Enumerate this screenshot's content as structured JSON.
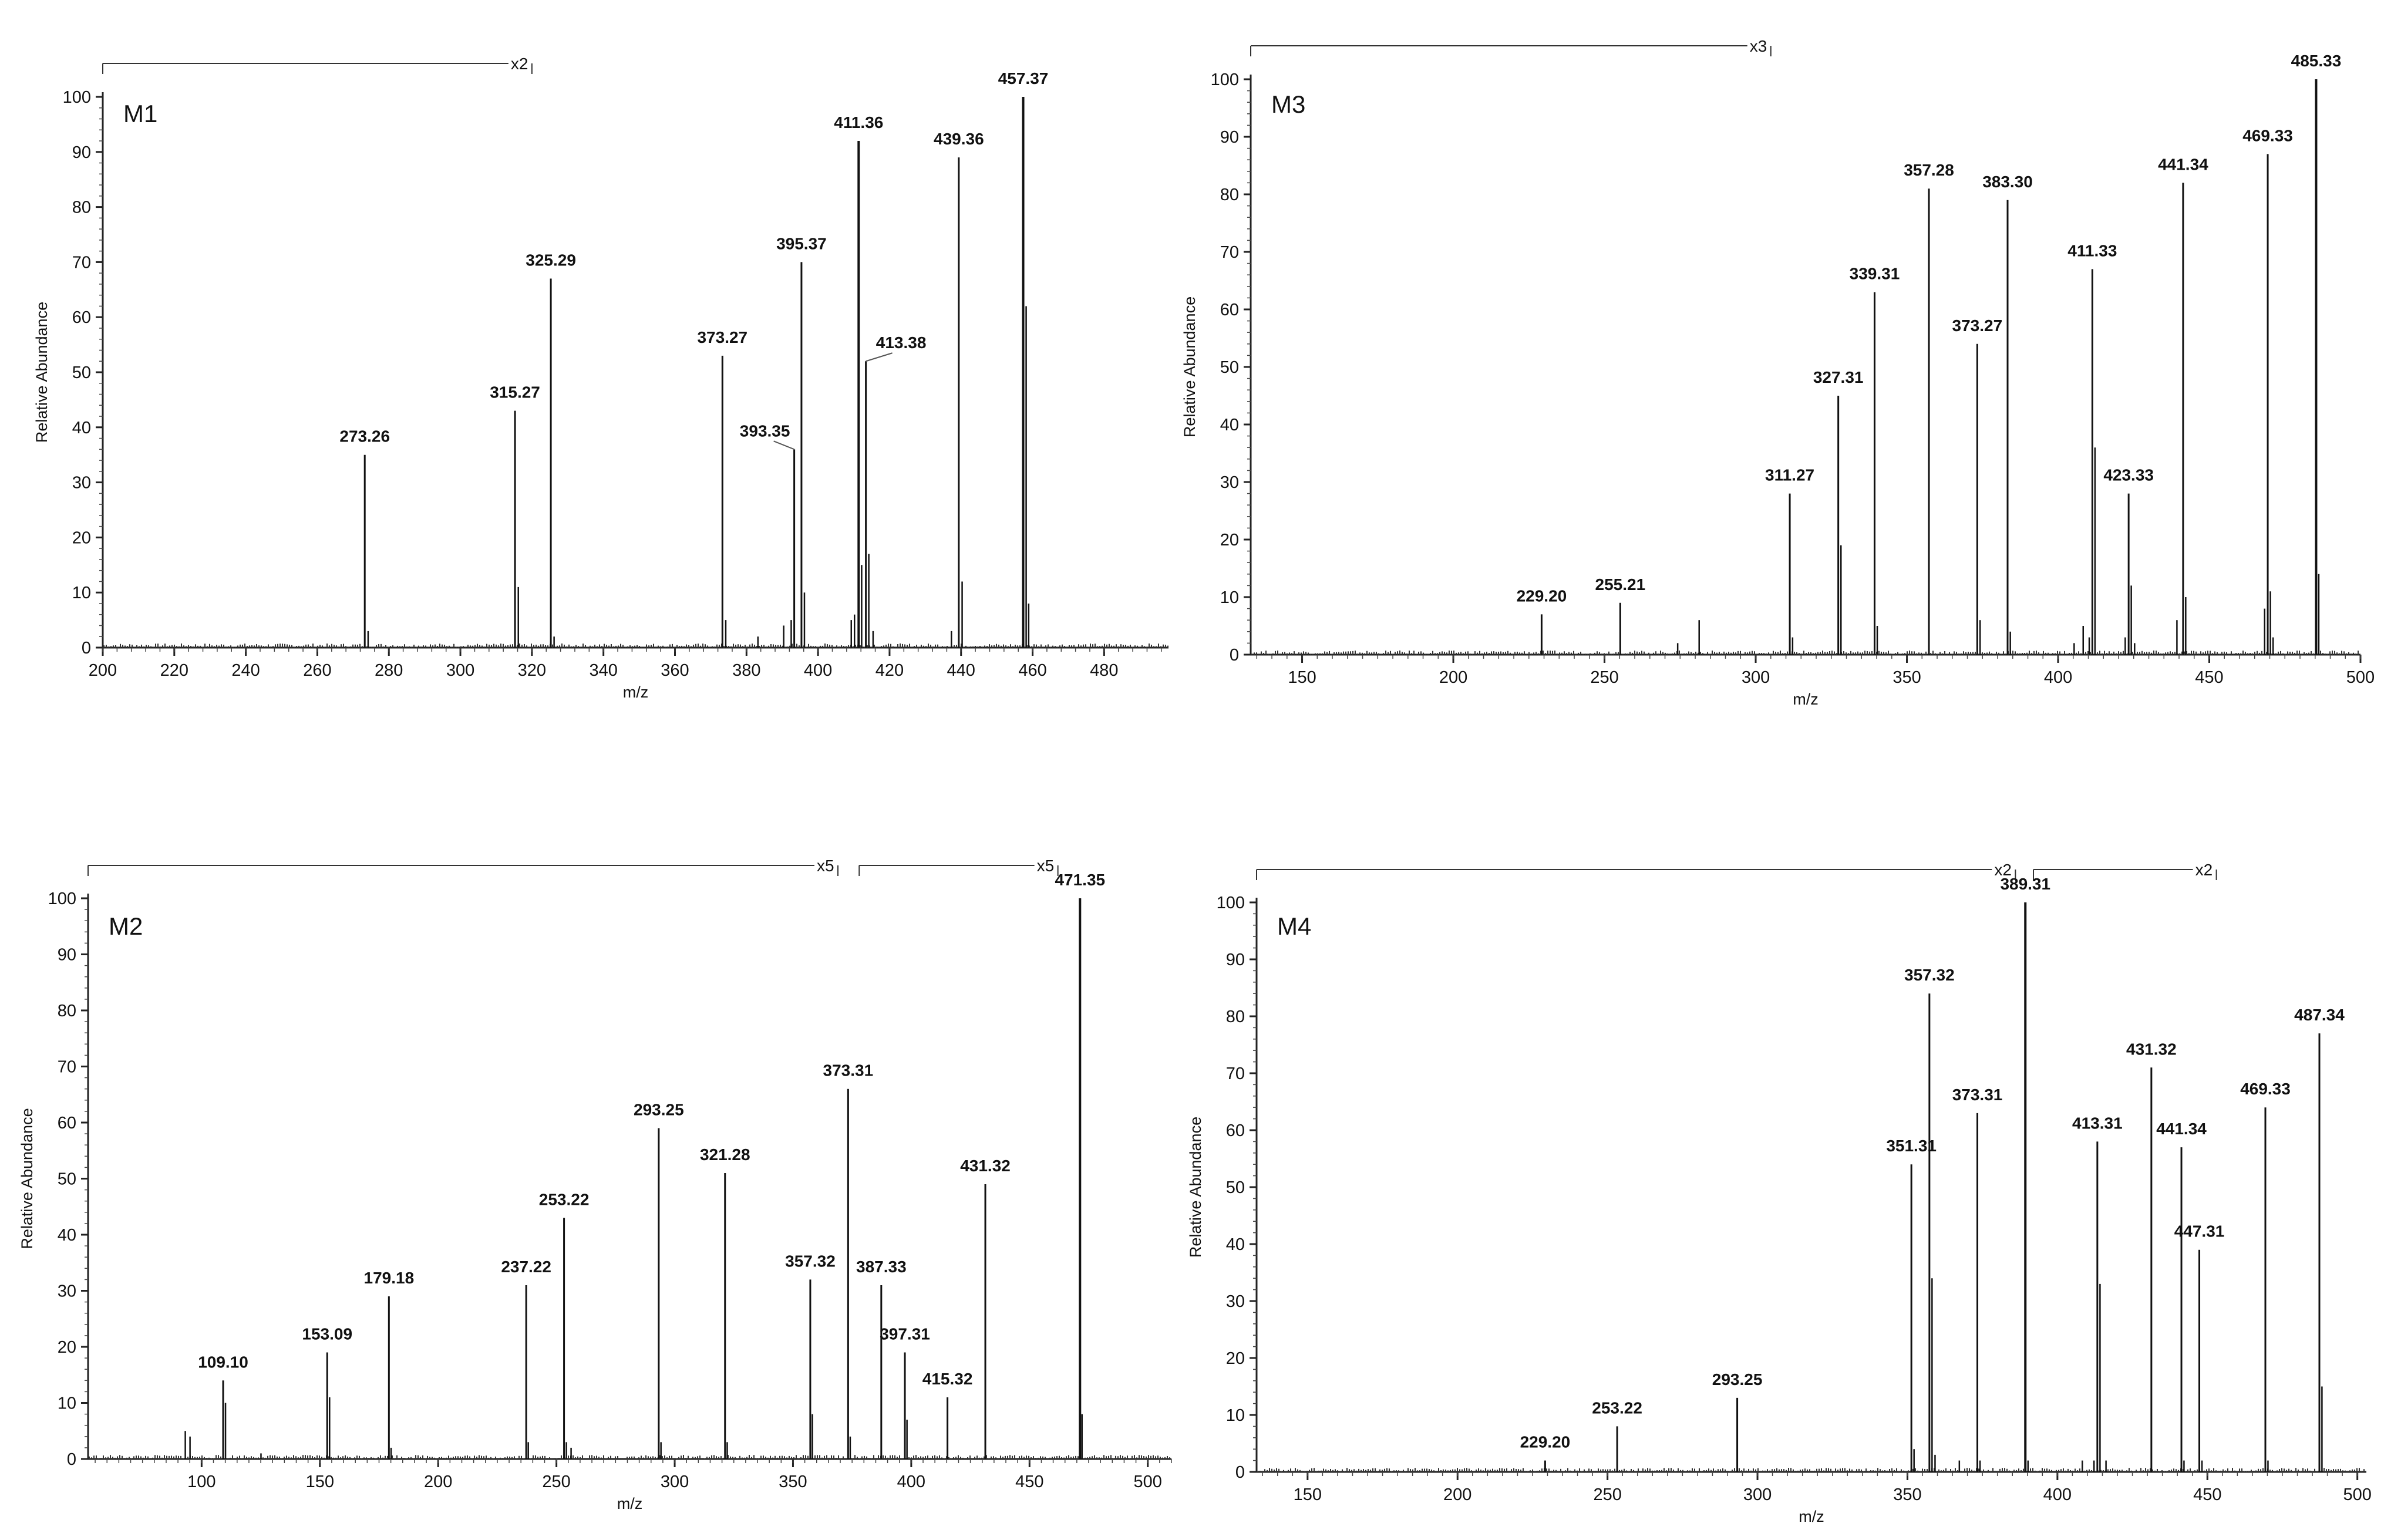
{
  "chart_data": [
    {
      "type": "bar",
      "panel_label": "M1",
      "xlabel": "m/z",
      "ylabel": "Relative Abundance",
      "xlim": [
        200,
        498
      ],
      "ylim": [
        0,
        100
      ],
      "xticks": [
        200,
        220,
        240,
        260,
        280,
        300,
        320,
        340,
        360,
        380,
        400,
        420,
        440,
        460,
        480
      ],
      "yticks": [
        0,
        10,
        20,
        30,
        40,
        50,
        60,
        70,
        80,
        90,
        100
      ],
      "magnifications": [
        {
          "label": "x2",
          "from": 200,
          "to": 320
        }
      ],
      "peaks": [
        {
          "mz": 273.26,
          "abundance": 35,
          "label": "273.26"
        },
        {
          "mz": 315.27,
          "abundance": 43,
          "label": "315.27"
        },
        {
          "mz": 325.29,
          "abundance": 67,
          "label": "325.29"
        },
        {
          "mz": 373.27,
          "abundance": 53,
          "label": "373.27"
        },
        {
          "mz": 393.35,
          "abundance": 36,
          "label": "393.35"
        },
        {
          "mz": 395.37,
          "abundance": 70,
          "label": "395.37"
        },
        {
          "mz": 411.36,
          "abundance": 92,
          "label": "411.36"
        },
        {
          "mz": 413.38,
          "abundance": 52,
          "label": "413.38"
        },
        {
          "mz": 439.36,
          "abundance": 89,
          "label": "439.36"
        },
        {
          "mz": 457.37,
          "abundance": 100,
          "label": "457.37"
        },
        {
          "mz": 274.2,
          "abundance": 3
        },
        {
          "mz": 316.2,
          "abundance": 11
        },
        {
          "mz": 326.2,
          "abundance": 2
        },
        {
          "mz": 374.2,
          "abundance": 5
        },
        {
          "mz": 383.2,
          "abundance": 2
        },
        {
          "mz": 390.4,
          "abundance": 4
        },
        {
          "mz": 392.5,
          "abundance": 5
        },
        {
          "mz": 396.2,
          "abundance": 10
        },
        {
          "mz": 409.3,
          "abundance": 5
        },
        {
          "mz": 410.2,
          "abundance": 6
        },
        {
          "mz": 412.2,
          "abundance": 15
        },
        {
          "mz": 414.2,
          "abundance": 17
        },
        {
          "mz": 415.4,
          "abundance": 3
        },
        {
          "mz": 437.3,
          "abundance": 3
        },
        {
          "mz": 440.3,
          "abundance": 12
        },
        {
          "mz": 458.2,
          "abundance": 62
        },
        {
          "mz": 458.9,
          "abundance": 8
        }
      ]
    },
    {
      "type": "bar",
      "panel_label": "M3",
      "xlabel": "m/z",
      "ylabel": "Relative Abundance",
      "xlim": [
        133,
        500
      ],
      "ylim": [
        0,
        100
      ],
      "xticks": [
        150,
        200,
        250,
        300,
        350,
        400,
        450,
        500
      ],
      "yticks": [
        0,
        10,
        20,
        30,
        40,
        50,
        60,
        70,
        80,
        90,
        100
      ],
      "magnifications": [
        {
          "label": "x3",
          "from": 133,
          "to": 305
        }
      ],
      "peaks": [
        {
          "mz": 229.2,
          "abundance": 7,
          "label": "229.20"
        },
        {
          "mz": 255.21,
          "abundance": 9,
          "label": "255.21"
        },
        {
          "mz": 311.27,
          "abundance": 28,
          "label": "311.27"
        },
        {
          "mz": 327.31,
          "abundance": 45,
          "label": "327.31"
        },
        {
          "mz": 339.31,
          "abundance": 63,
          "label": "339.31"
        },
        {
          "mz": 357.28,
          "abundance": 81,
          "label": "357.28"
        },
        {
          "mz": 373.27,
          "abundance": 54,
          "label": "373.27"
        },
        {
          "mz": 383.3,
          "abundance": 79,
          "label": "383.30"
        },
        {
          "mz": 411.33,
          "abundance": 67,
          "label": "411.33"
        },
        {
          "mz": 423.33,
          "abundance": 28,
          "label": "423.33"
        },
        {
          "mz": 441.34,
          "abundance": 82,
          "label": "441.34"
        },
        {
          "mz": 469.33,
          "abundance": 87,
          "label": "469.33"
        },
        {
          "mz": 485.33,
          "abundance": 100,
          "label": "485.33"
        },
        {
          "mz": 274.2,
          "abundance": 2
        },
        {
          "mz": 281.3,
          "abundance": 6
        },
        {
          "mz": 312.2,
          "abundance": 3
        },
        {
          "mz": 328.2,
          "abundance": 19
        },
        {
          "mz": 340.2,
          "abundance": 5
        },
        {
          "mz": 374.2,
          "abundance": 6
        },
        {
          "mz": 384.2,
          "abundance": 4
        },
        {
          "mz": 405.3,
          "abundance": 2
        },
        {
          "mz": 408.3,
          "abundance": 5
        },
        {
          "mz": 410.3,
          "abundance": 3
        },
        {
          "mz": 412.2,
          "abundance": 36
        },
        {
          "mz": 422.2,
          "abundance": 3
        },
        {
          "mz": 424.2,
          "abundance": 12
        },
        {
          "mz": 425.3,
          "abundance": 2
        },
        {
          "mz": 439.3,
          "abundance": 6
        },
        {
          "mz": 442.2,
          "abundance": 10
        },
        {
          "mz": 468.3,
          "abundance": 8
        },
        {
          "mz": 470.2,
          "abundance": 11
        },
        {
          "mz": 471.1,
          "abundance": 3
        },
        {
          "mz": 486.2,
          "abundance": 14
        }
      ]
    },
    {
      "type": "bar",
      "panel_label": "M2",
      "xlabel": "m/z",
      "ylabel": "Relative Abundance",
      "xlim": [
        52,
        510
      ],
      "ylim": [
        0,
        100
      ],
      "xticks": [
        100,
        150,
        200,
        250,
        300,
        350,
        400,
        450,
        500
      ],
      "yticks": [
        0,
        10,
        20,
        30,
        40,
        50,
        60,
        70,
        80,
        90,
        100
      ],
      "magnifications": [
        {
          "label": "x5",
          "from": 52,
          "to": 369
        },
        {
          "label": "x5",
          "from": 378,
          "to": 462
        }
      ],
      "peaks": [
        {
          "mz": 109.1,
          "abundance": 14,
          "label": "109.10"
        },
        {
          "mz": 153.09,
          "abundance": 19,
          "label": "153.09"
        },
        {
          "mz": 179.18,
          "abundance": 29,
          "label": "179.18"
        },
        {
          "mz": 237.22,
          "abundance": 31,
          "label": "237.22"
        },
        {
          "mz": 253.22,
          "abundance": 43,
          "label": "253.22"
        },
        {
          "mz": 293.25,
          "abundance": 59,
          "label": "293.25"
        },
        {
          "mz": 321.28,
          "abundance": 51,
          "label": "321.28"
        },
        {
          "mz": 357.32,
          "abundance": 32,
          "label": "357.32"
        },
        {
          "mz": 373.31,
          "abundance": 66,
          "label": "373.31"
        },
        {
          "mz": 387.33,
          "abundance": 31,
          "label": "387.33"
        },
        {
          "mz": 397.31,
          "abundance": 19,
          "label": "397.31"
        },
        {
          "mz": 415.32,
          "abundance": 11,
          "label": "415.32"
        },
        {
          "mz": 431.32,
          "abundance": 49,
          "label": "431.32"
        },
        {
          "mz": 471.35,
          "abundance": 100,
          "label": "471.35"
        },
        {
          "mz": 93.1,
          "abundance": 5
        },
        {
          "mz": 95.1,
          "abundance": 4
        },
        {
          "mz": 110.1,
          "abundance": 10
        },
        {
          "mz": 125.1,
          "abundance": 1
        },
        {
          "mz": 154.1,
          "abundance": 11
        },
        {
          "mz": 180.1,
          "abundance": 2
        },
        {
          "mz": 238.1,
          "abundance": 3
        },
        {
          "mz": 254.2,
          "abundance": 3
        },
        {
          "mz": 256.2,
          "abundance": 2
        },
        {
          "mz": 294.2,
          "abundance": 3
        },
        {
          "mz": 322.2,
          "abundance": 3
        },
        {
          "mz": 358.2,
          "abundance": 8
        },
        {
          "mz": 374.2,
          "abundance": 4
        },
        {
          "mz": 398.2,
          "abundance": 7
        },
        {
          "mz": 472.2,
          "abundance": 8
        }
      ]
    },
    {
      "type": "bar",
      "panel_label": "M4",
      "xlabel": "m/z",
      "ylabel": "Relative Abundance",
      "xlim": [
        133,
        503
      ],
      "ylim": [
        0,
        100
      ],
      "xticks": [
        150,
        200,
        250,
        300,
        350,
        400,
        450,
        500
      ],
      "yticks": [
        0,
        10,
        20,
        30,
        40,
        50,
        60,
        70,
        80,
        90,
        100
      ],
      "magnifications": [
        {
          "label": "x2",
          "from": 133,
          "to": 386
        },
        {
          "label": "x2",
          "from": 392,
          "to": 453
        }
      ],
      "peaks": [
        {
          "mz": 229.2,
          "abundance": 2,
          "label": "229.20"
        },
        {
          "mz": 253.22,
          "abundance": 8,
          "label": "253.22"
        },
        {
          "mz": 293.25,
          "abundance": 13,
          "label": "293.25"
        },
        {
          "mz": 351.31,
          "abundance": 54,
          "label": "351.31"
        },
        {
          "mz": 357.32,
          "abundance": 84,
          "label": "357.32"
        },
        {
          "mz": 373.31,
          "abundance": 63,
          "label": "373.31"
        },
        {
          "mz": 389.31,
          "abundance": 100,
          "label": "389.31"
        },
        {
          "mz": 413.31,
          "abundance": 58,
          "label": "413.31"
        },
        {
          "mz": 431.32,
          "abundance": 71,
          "label": "431.32"
        },
        {
          "mz": 441.34,
          "abundance": 57,
          "label": "441.34"
        },
        {
          "mz": 447.31,
          "abundance": 39,
          "label": "447.31"
        },
        {
          "mz": 469.33,
          "abundance": 64,
          "label": "469.33"
        },
        {
          "mz": 487.34,
          "abundance": 77,
          "label": "487.34"
        },
        {
          "mz": 352.2,
          "abundance": 4
        },
        {
          "mz": 358.2,
          "abundance": 34
        },
        {
          "mz": 359.2,
          "abundance": 3
        },
        {
          "mz": 367.3,
          "abundance": 2
        },
        {
          "mz": 374.2,
          "abundance": 2
        },
        {
          "mz": 390.2,
          "abundance": 2
        },
        {
          "mz": 408.3,
          "abundance": 2
        },
        {
          "mz": 412.2,
          "abundance": 2
        },
        {
          "mz": 414.2,
          "abundance": 33
        },
        {
          "mz": 416.2,
          "abundance": 2
        },
        {
          "mz": 442.2,
          "abundance": 2
        },
        {
          "mz": 448.2,
          "abundance": 2
        },
        {
          "mz": 470.2,
          "abundance": 2
        },
        {
          "mz": 488.2,
          "abundance": 15
        }
      ]
    }
  ]
}
